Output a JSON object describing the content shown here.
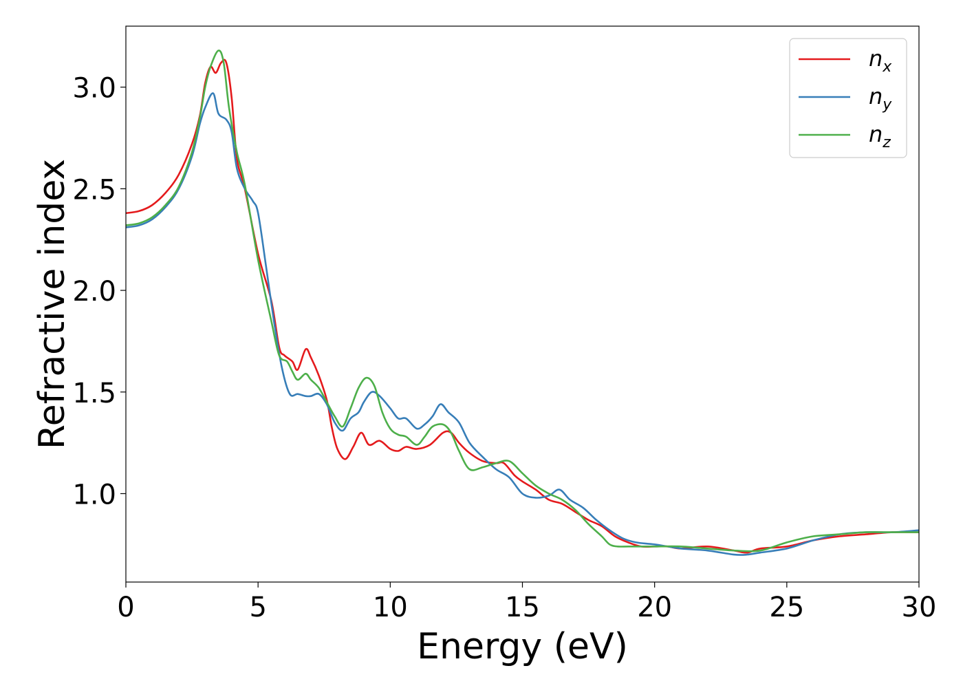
{
  "chart_data": {
    "type": "line",
    "title": "",
    "xlabel": "Energy (eV)",
    "ylabel": "Refractive index",
    "xlim": [
      0,
      30
    ],
    "ylim": [
      0.565,
      3.3
    ],
    "xticks": [
      "0",
      "5",
      "10",
      "15",
      "20",
      "25",
      "30"
    ],
    "yticks": [
      "1.0",
      "1.5",
      "2.0",
      "2.5",
      "3.0"
    ],
    "grid": false,
    "legend_position": "top-right",
    "series": [
      {
        "name": "n",
        "subscript": "x",
        "color": "#e41a1c",
        "x": [
          0,
          0.5,
          1,
          1.5,
          2,
          2.5,
          2.8,
          3.0,
          3.2,
          3.4,
          3.6,
          3.8,
          4.0,
          4.2,
          4.5,
          5.0,
          5.5,
          5.8,
          6.0,
          6.3,
          6.5,
          6.8,
          7.0,
          7.3,
          7.6,
          7.8,
          8.0,
          8.3,
          8.6,
          8.9,
          9.2,
          9.6,
          10.0,
          10.3,
          10.6,
          11.0,
          11.5,
          12.0,
          12.3,
          12.6,
          13.0,
          13.5,
          14.0,
          14.3,
          14.7,
          15.0,
          15.5,
          16.0,
          16.5,
          17.0,
          17.5,
          18.0,
          18.5,
          19.0,
          19.5,
          20.0,
          20.5,
          21.0,
          22.0,
          23.0,
          23.5,
          24.0,
          25.0,
          26.0,
          27.0,
          28.0,
          29.0,
          30.0
        ],
        "values": [
          2.38,
          2.39,
          2.42,
          2.48,
          2.57,
          2.72,
          2.86,
          3.02,
          3.1,
          3.07,
          3.12,
          3.12,
          2.95,
          2.65,
          2.5,
          2.18,
          1.95,
          1.72,
          1.68,
          1.65,
          1.61,
          1.71,
          1.67,
          1.58,
          1.46,
          1.32,
          1.22,
          1.17,
          1.23,
          1.3,
          1.24,
          1.26,
          1.22,
          1.21,
          1.23,
          1.22,
          1.24,
          1.3,
          1.3,
          1.25,
          1.2,
          1.16,
          1.15,
          1.15,
          1.09,
          1.06,
          1.02,
          0.97,
          0.95,
          0.91,
          0.87,
          0.84,
          0.79,
          0.76,
          0.74,
          0.74,
          0.74,
          0.73,
          0.74,
          0.72,
          0.71,
          0.73,
          0.74,
          0.77,
          0.79,
          0.8,
          0.81,
          0.81
        ]
      },
      {
        "name": "n",
        "subscript": "y",
        "color": "#377eb8",
        "x": [
          0,
          0.5,
          1,
          1.5,
          2,
          2.5,
          2.8,
          3.0,
          3.3,
          3.5,
          3.8,
          4.0,
          4.2,
          4.5,
          4.8,
          5.0,
          5.3,
          5.6,
          5.9,
          6.2,
          6.5,
          6.8,
          7.0,
          7.3,
          7.6,
          7.9,
          8.2,
          8.5,
          8.8,
          9.0,
          9.3,
          9.6,
          10.0,
          10.3,
          10.6,
          11.0,
          11.3,
          11.6,
          11.9,
          12.2,
          12.6,
          13.0,
          13.5,
          14.0,
          14.5,
          15.0,
          15.5,
          16.0,
          16.4,
          16.8,
          17.3,
          17.8,
          18.3,
          18.8,
          19.3,
          20.0,
          21.0,
          22.0,
          23.0,
          23.5,
          24.0,
          25.0,
          26.0,
          27.0,
          28.0,
          29.0,
          30.0
        ],
        "values": [
          2.31,
          2.32,
          2.35,
          2.41,
          2.5,
          2.66,
          2.82,
          2.9,
          2.97,
          2.87,
          2.84,
          2.78,
          2.6,
          2.5,
          2.44,
          2.38,
          2.12,
          1.85,
          1.62,
          1.49,
          1.49,
          1.48,
          1.48,
          1.49,
          1.44,
          1.35,
          1.31,
          1.37,
          1.4,
          1.45,
          1.5,
          1.48,
          1.42,
          1.37,
          1.37,
          1.32,
          1.34,
          1.38,
          1.44,
          1.4,
          1.35,
          1.25,
          1.18,
          1.12,
          1.08,
          1.0,
          0.98,
          0.99,
          1.02,
          0.97,
          0.93,
          0.87,
          0.82,
          0.78,
          0.76,
          0.75,
          0.73,
          0.72,
          0.7,
          0.7,
          0.71,
          0.73,
          0.77,
          0.8,
          0.81,
          0.81,
          0.82
        ]
      },
      {
        "name": "n",
        "subscript": "z",
        "color": "#4daf4a",
        "x": [
          0,
          0.5,
          1,
          1.5,
          2,
          2.5,
          2.8,
          3.0,
          3.2,
          3.5,
          3.7,
          3.9,
          4.2,
          4.5,
          5.0,
          5.5,
          5.8,
          6.1,
          6.3,
          6.5,
          6.8,
          7.0,
          7.3,
          7.6,
          7.9,
          8.2,
          8.5,
          8.8,
          9.1,
          9.4,
          9.7,
          10.0,
          10.3,
          10.6,
          11.0,
          11.3,
          11.6,
          12.0,
          12.3,
          12.6,
          13.0,
          13.5,
          14.0,
          14.5,
          15.0,
          15.5,
          16.0,
          16.5,
          17.0,
          17.5,
          18.0,
          18.3,
          18.6,
          19.0,
          19.5,
          20.0,
          21.0,
          22.0,
          23.0,
          24.0,
          25.0,
          26.0,
          27.0,
          28.0,
          29.0,
          30.0
        ],
        "values": [
          2.32,
          2.33,
          2.36,
          2.42,
          2.51,
          2.68,
          2.85,
          3.0,
          3.1,
          3.18,
          3.12,
          2.9,
          2.68,
          2.52,
          2.15,
          1.85,
          1.68,
          1.65,
          1.6,
          1.56,
          1.59,
          1.56,
          1.52,
          1.45,
          1.38,
          1.33,
          1.42,
          1.52,
          1.57,
          1.53,
          1.4,
          1.32,
          1.29,
          1.28,
          1.24,
          1.28,
          1.33,
          1.34,
          1.3,
          1.21,
          1.12,
          1.13,
          1.15,
          1.16,
          1.1,
          1.04,
          1.0,
          0.97,
          0.92,
          0.85,
          0.79,
          0.75,
          0.74,
          0.74,
          0.74,
          0.74,
          0.74,
          0.73,
          0.72,
          0.72,
          0.76,
          0.79,
          0.8,
          0.81,
          0.81,
          0.81
        ]
      }
    ]
  }
}
